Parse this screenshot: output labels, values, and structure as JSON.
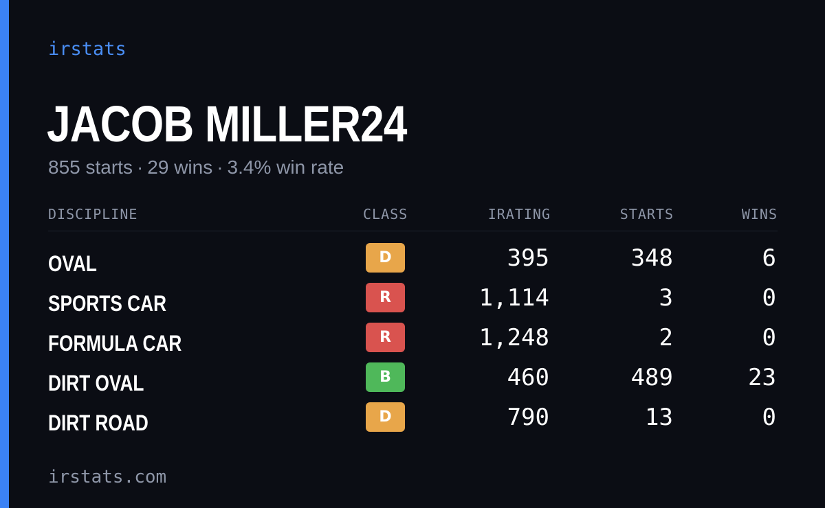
{
  "brand": "irstats",
  "driver": {
    "name": "JACOB MILLER24"
  },
  "summary": {
    "starts": "855 starts",
    "wins": "29 wins",
    "win_rate": "3.4% win rate",
    "separator": "·"
  },
  "table": {
    "headers": {
      "discipline": "DISCIPLINE",
      "class": "CLASS",
      "irating": "IRATING",
      "starts": "STARTS",
      "wins": "WINS"
    },
    "rows": [
      {
        "discipline": "OVAL",
        "class": "D",
        "class_color": "#e8a64a",
        "irating": "395",
        "starts": "348",
        "wins": "6"
      },
      {
        "discipline": "SPORTS CAR",
        "class": "R",
        "class_color": "#d9534f",
        "irating": "1,114",
        "starts": "3",
        "wins": "0"
      },
      {
        "discipline": "FORMULA CAR",
        "class": "R",
        "class_color": "#d9534f",
        "irating": "1,248",
        "starts": "2",
        "wins": "0"
      },
      {
        "discipline": "DIRT OVAL",
        "class": "B",
        "class_color": "#4fb85a",
        "irating": "460",
        "starts": "489",
        "wins": "23"
      },
      {
        "discipline": "DIRT ROAD",
        "class": "D",
        "class_color": "#e8a64a",
        "irating": "790",
        "starts": "13",
        "wins": "0"
      }
    ]
  },
  "footer": "irstats.com",
  "colors": {
    "accent": "#3b82f6",
    "background": "#0b0d14",
    "muted_text": "#8e96a8"
  }
}
